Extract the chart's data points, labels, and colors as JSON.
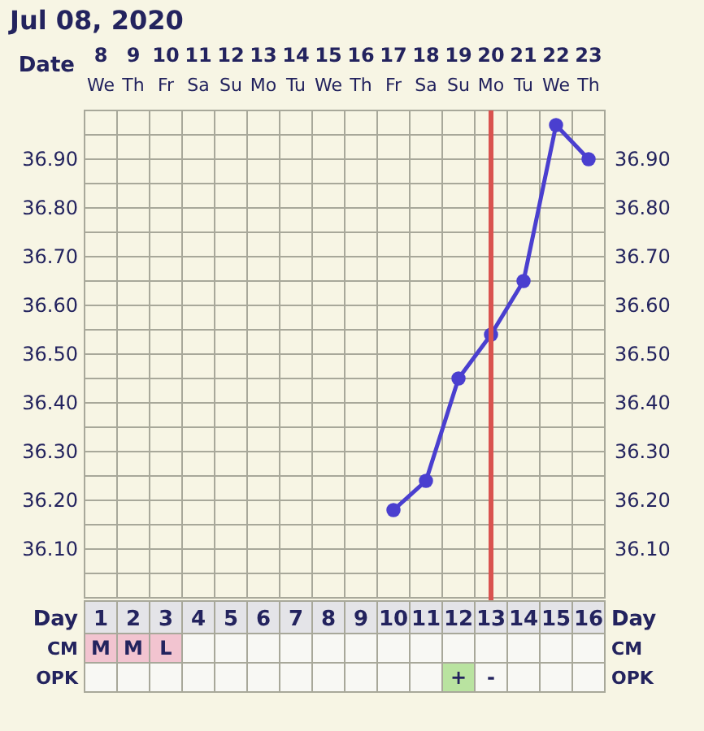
{
  "chart_data": [
    {
      "type": "line",
      "title": "Jul 08, 2020",
      "xlabel": "Day",
      "x2label": "Date",
      "x": [
        10,
        11,
        12,
        13,
        14,
        15,
        16
      ],
      "series": [
        {
          "color": "#4a3fcf",
          "values": [
            36.18,
            36.24,
            36.45,
            36.54,
            36.65,
            36.97,
            36.9
          ]
        }
      ],
      "xlim": [
        0.5,
        16.5
      ],
      "xticks": [
        1,
        2,
        3,
        4,
        5,
        6,
        7,
        8,
        9,
        10,
        11,
        12,
        13,
        14,
        15,
        16
      ],
      "x2lim": [
        7.5,
        23.5
      ],
      "x2ticks": [
        8,
        9,
        10,
        11,
        12,
        13,
        14,
        15,
        16,
        17,
        18,
        19,
        20,
        21,
        22,
        23
      ],
      "annotations": [
        "We",
        "Th",
        "Fr",
        "Sa",
        "Su",
        "Mo",
        "Tu",
        "We",
        "Th",
        "Fr",
        "Sa",
        "Su",
        "Mo",
        "Tu",
        "We",
        "Th"
      ],
      "ylim": [
        36.0,
        37.0
      ],
      "yticks": [
        {
          "value": 36.05,
          "label": null
        },
        {
          "value": 36.1,
          "label": "36.10"
        },
        {
          "value": 36.15,
          "label": null
        },
        {
          "value": 36.2,
          "label": "36.20"
        },
        {
          "value": 36.25,
          "label": null
        },
        {
          "value": 36.3,
          "label": "36.30"
        },
        {
          "value": 36.35,
          "label": null
        },
        {
          "value": 36.4,
          "label": "36.40"
        },
        {
          "value": 36.45,
          "label": null
        },
        {
          "value": 36.5,
          "label": "36.50"
        },
        {
          "value": 36.55,
          "label": null
        },
        {
          "value": 36.6,
          "label": "36.60"
        },
        {
          "value": 36.65,
          "label": null
        },
        {
          "value": 36.7,
          "label": "36.70"
        },
        {
          "value": 36.75,
          "label": null
        },
        {
          "value": 36.8,
          "label": "36.80"
        },
        {
          "value": 36.85,
          "label": null
        },
        {
          "value": 36.9,
          "label": "36.90"
        },
        {
          "value": 36.95,
          "label": null
        }
      ],
      "y2lim": [
        36.0,
        37.0
      ],
      "y2ticks": [
        {
          "value": 36.05,
          "label": null
        },
        {
          "value": 36.1,
          "label": "36.10"
        },
        {
          "value": 36.15,
          "label": null
        },
        {
          "value": 36.2,
          "label": "36.20"
        },
        {
          "value": 36.25,
          "label": null
        },
        {
          "value": 36.3,
          "label": "36.30"
        },
        {
          "value": 36.35,
          "label": null
        },
        {
          "value": 36.4,
          "label": "36.40"
        },
        {
          "value": 36.45,
          "label": null
        },
        {
          "value": 36.5,
          "label": "36.50"
        },
        {
          "value": 36.55,
          "label": null
        },
        {
          "value": 36.6,
          "label": "36.60"
        },
        {
          "value": 36.65,
          "label": null
        },
        {
          "value": 36.7,
          "label": "36.70"
        },
        {
          "value": 36.75,
          "label": null
        },
        {
          "value": 36.8,
          "label": "36.80"
        },
        {
          "value": 36.85,
          "label": null
        },
        {
          "value": 36.9,
          "label": "36.90"
        },
        {
          "value": 36.95,
          "label": null
        }
      ],
      "ref_lines": [
        {
          "axis": "x",
          "value": 13,
          "color": "#d9534f"
        }
      ],
      "grid": true,
      "marker": "circle",
      "line_style": "solid"
    },
    {
      "type": "other",
      "categories": [
        "1",
        "2",
        "3",
        "4",
        "5",
        "6",
        "7",
        "8",
        "9",
        "10",
        "11",
        "12",
        "13",
        "14",
        "15",
        "16"
      ],
      "y_categories": [
        "CM",
        "OPK"
      ],
      "y2_categories": [
        "CM",
        "OPK"
      ],
      "cell_labels": [
        [
          "M",
          "M",
          "L",
          null,
          null,
          null,
          null,
          null,
          null,
          null,
          null,
          null,
          null,
          null,
          null,
          null
        ],
        [
          null,
          null,
          null,
          null,
          null,
          null,
          null,
          null,
          null,
          null,
          null,
          "+",
          "-",
          null,
          null,
          null
        ]
      ],
      "colors": [
        [
          "#f2c4d0",
          "#f2c4d0",
          "#f2c4d0",
          null,
          null,
          null,
          null,
          null,
          null,
          null,
          null,
          null,
          null,
          null,
          null,
          null
        ],
        [
          null,
          null,
          null,
          null,
          null,
          null,
          null,
          null,
          null,
          null,
          null,
          "#b9e3a0",
          null,
          null,
          null,
          null
        ]
      ]
    }
  ]
}
